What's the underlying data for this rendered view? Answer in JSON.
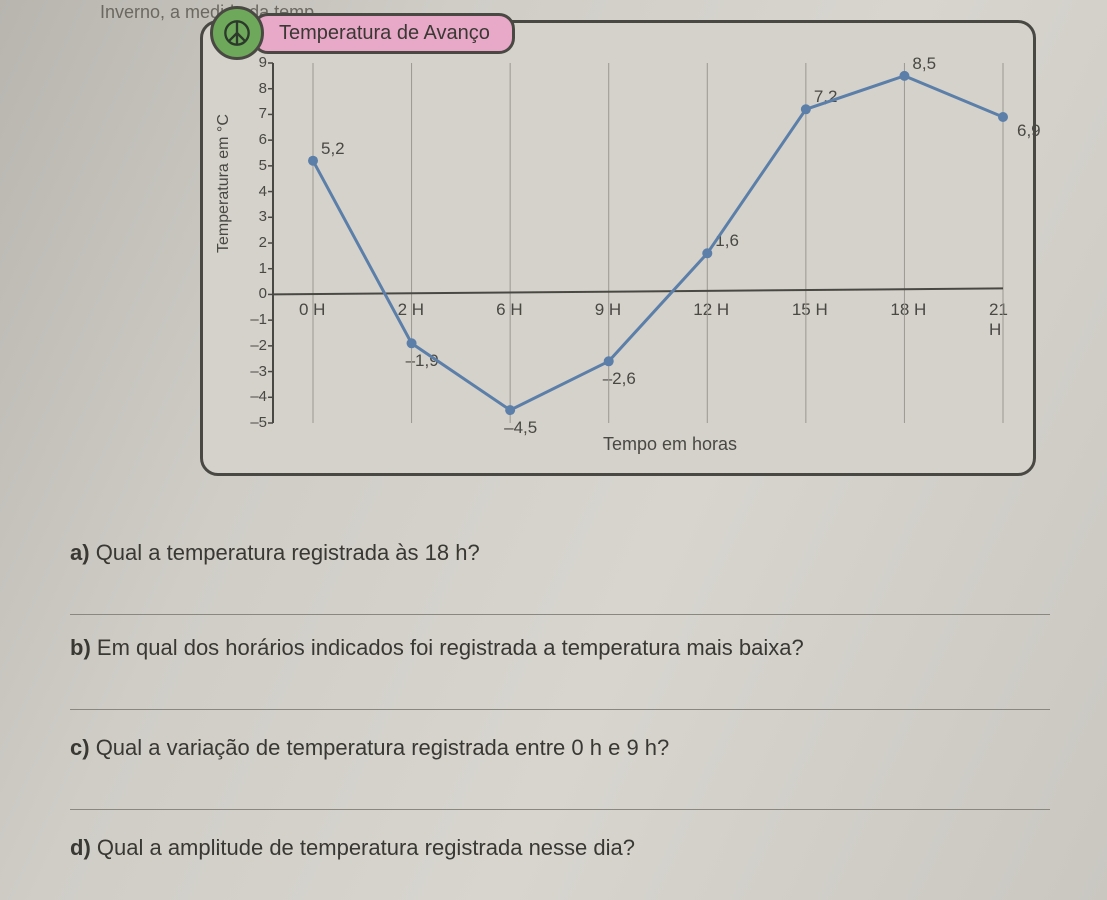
{
  "top_fragment": "Inverno, a medida da temp…",
  "chart": {
    "title": "Temperatura de Avanço",
    "type": "line",
    "y_axis_label": "Temperatura em °C",
    "x_axis_label": "Tempo em horas",
    "ylim": [
      -5,
      9
    ],
    "yticks": [
      9,
      8,
      7,
      6,
      5,
      4,
      3,
      2,
      1,
      0,
      -1,
      -2,
      -3,
      -4,
      -5
    ],
    "ytick_labels": [
      "9",
      "8",
      "7",
      "6",
      "5",
      "4",
      "3",
      "2",
      "1",
      "0",
      "–1",
      "–2",
      "–3",
      "–4",
      "–5"
    ],
    "x_categories": [
      "0 H",
      "2 H",
      "6 H",
      "9 H",
      "12 H",
      "15 H",
      "18 H",
      "21 H"
    ],
    "values": [
      5.2,
      -1.9,
      -4.5,
      -2.6,
      1.6,
      7.2,
      8.5,
      6.9
    ],
    "data_labels": [
      "5,2",
      "–1,9",
      "–4,5",
      "–2,6",
      "1,6",
      "7,2",
      "8,5",
      "6,9"
    ],
    "line_color": "#5b7fa8",
    "marker_color": "#5b7fa8",
    "grid_color": "#9a9790",
    "axis_color": "#4a4843",
    "background_color": "#d5d2cc",
    "line_width": 3,
    "marker_radius": 5
  },
  "questions": {
    "a": {
      "letter": "a)",
      "text": "Qual a temperatura registrada às 18 h?"
    },
    "b": {
      "letter": "b)",
      "text": "Em qual dos horários indicados foi registrada a temperatura mais baixa?"
    },
    "c": {
      "letter": "c)",
      "text": "Qual a variação de temperatura registrada entre 0 h e 9 h?"
    },
    "d": {
      "letter": "d)",
      "text": "Qual a amplitude de temperatura registrada nesse dia?"
    }
  }
}
